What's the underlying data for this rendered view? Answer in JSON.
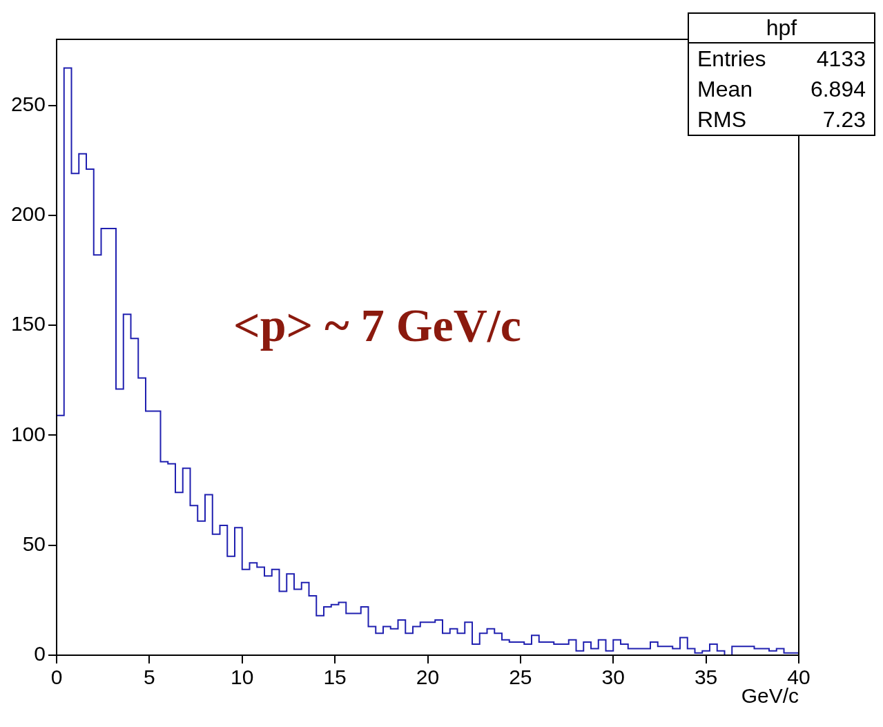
{
  "chart_data": {
    "type": "histogram",
    "xlabel": "GeV/c",
    "bins": [
      0,
      0.4,
      0.8,
      1.2,
      1.6,
      2,
      2.4,
      2.8,
      3.2,
      3.6,
      4,
      4.4,
      4.8,
      5.2,
      5.6,
      6,
      6.4,
      6.8,
      7.2,
      7.6,
      8,
      8.4,
      8.8,
      9.2,
      9.6,
      10,
      10.4,
      10.8,
      11.2,
      11.6,
      12,
      12.4,
      12.8,
      13.2,
      13.6,
      14,
      14.4,
      14.8,
      15.2,
      15.6,
      16,
      16.4,
      16.8,
      17.2,
      17.6,
      18,
      18.4,
      18.8,
      19.2,
      19.6,
      20,
      20.4,
      20.8,
      21.2,
      21.6,
      22,
      22.4,
      22.8,
      23.2,
      23.6,
      24,
      24.4,
      24.8,
      25.2,
      25.6,
      26,
      26.4,
      26.8,
      27.2,
      27.6,
      28,
      28.4,
      28.8,
      29.2,
      29.6,
      30,
      30.4,
      30.8,
      31.2,
      31.6,
      32,
      32.4,
      32.8,
      33.2,
      33.6,
      34,
      34.4,
      34.8,
      35.2,
      35.6,
      36,
      36.4,
      36.8,
      37.2,
      37.6,
      38,
      38.4,
      38.8,
      39.2,
      39.6,
      40
    ],
    "values": [
      109,
      267,
      219,
      228,
      221,
      182,
      194,
      194,
      121,
      155,
      144,
      126,
      111,
      111,
      88,
      87,
      74,
      85,
      68,
      61,
      73,
      55,
      59,
      45,
      58,
      39,
      42,
      40,
      36,
      39,
      29,
      37,
      30,
      33,
      27,
      18,
      22,
      23,
      24,
      19,
      19,
      22,
      13,
      10,
      13,
      12,
      16,
      10,
      13,
      15,
      15,
      16,
      10,
      12,
      10,
      15,
      5,
      10,
      12,
      10,
      7,
      6,
      6,
      5,
      9,
      6,
      6,
      5,
      5,
      7,
      2,
      6,
      3,
      7,
      2,
      7,
      5,
      3,
      3,
      3,
      6,
      4,
      4,
      3,
      8,
      3,
      1,
      2,
      5,
      2,
      0,
      4,
      4,
      4,
      3,
      3,
      2,
      3,
      1,
      1
    ],
    "color": "#2020b0",
    "xlim": [
      0,
      40
    ],
    "xticks": [
      0,
      5,
      10,
      15,
      20,
      25,
      30,
      35,
      40
    ],
    "ylim": [
      0,
      280
    ],
    "yticks": [
      0,
      50,
      100,
      150,
      200,
      250
    ],
    "annotations": [
      "hpf",
      "Entries 4133",
      "Mean 6.894",
      "RMS 7.23",
      "<p> ~ 7 GeV/c"
    ]
  }
}
